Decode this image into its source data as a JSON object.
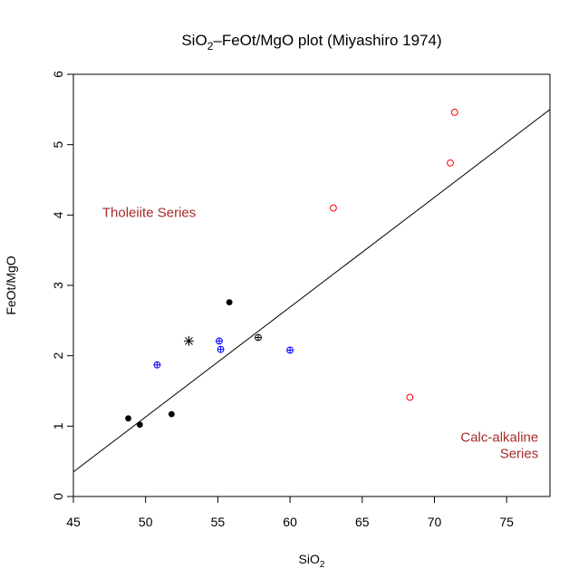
{
  "chart_data": {
    "type": "scatter",
    "title": {
      "pre": "SiO",
      "sub": "2",
      "post": "–FeOt/MgO plot (Miyashiro 1974)"
    },
    "xlabel": {
      "main": "SiO",
      "sub": "2"
    },
    "ylabel": "FeOt/MgO",
    "xlim": [
      45,
      78
    ],
    "ylim": [
      0,
      6
    ],
    "xticks": [
      45,
      50,
      55,
      60,
      65,
      70,
      75
    ],
    "yticks": [
      0,
      1,
      2,
      3,
      4,
      5,
      6
    ],
    "grid": false,
    "divider_line": {
      "x": [
        45,
        78
      ],
      "y": [
        0.35,
        5.5
      ]
    },
    "annotations": [
      {
        "text": "Tholeiite Series",
        "x": 47,
        "y": 3.97,
        "anchor": "start"
      },
      {
        "text": "Calc-alkaline",
        "x": 77.2,
        "y": 0.78,
        "anchor": "end"
      },
      {
        "text": "Series",
        "x": 77.2,
        "y": 0.55,
        "anchor": "end"
      }
    ],
    "annotation_color": "#A52A2A",
    "series": [
      {
        "marker": "filled-circle",
        "color": "#000000",
        "points": [
          [
            48.8,
            1.11
          ],
          [
            49.6,
            1.02
          ],
          [
            51.8,
            1.17
          ],
          [
            55.8,
            2.76
          ]
        ]
      },
      {
        "marker": "circle-plus",
        "color": "#0000FF",
        "points": [
          [
            50.8,
            1.87
          ],
          [
            55.1,
            2.21
          ],
          [
            55.2,
            2.09
          ],
          [
            60.0,
            2.08
          ]
        ]
      },
      {
        "marker": "circle-plus",
        "color": "#000000",
        "points": [
          [
            57.8,
            2.26
          ]
        ]
      },
      {
        "marker": "asterisk",
        "color": "#000000",
        "points": [
          [
            53.0,
            2.21
          ]
        ]
      },
      {
        "marker": "open-circle",
        "color": "#FF0000",
        "points": [
          [
            63.0,
            4.1
          ],
          [
            68.3,
            1.41
          ],
          [
            71.1,
            4.74
          ],
          [
            71.4,
            5.46
          ]
        ]
      }
    ]
  }
}
